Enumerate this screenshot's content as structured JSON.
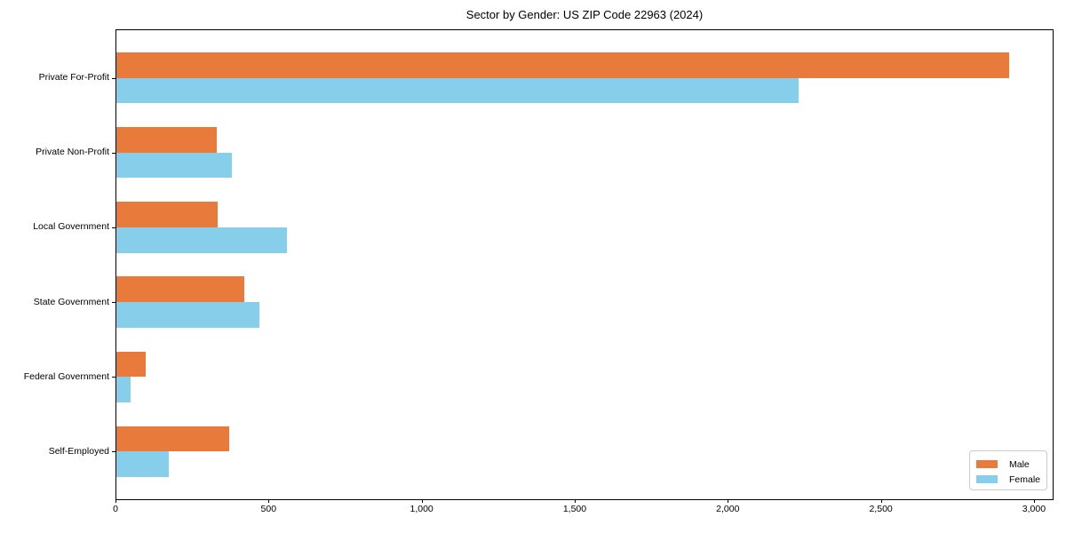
{
  "chart_data": {
    "type": "bar",
    "orientation": "horizontal",
    "title": "Sector by Gender: US ZIP Code 22963 (2024)",
    "categories": [
      "Private For-Profit",
      "Private Non-Profit",
      "Local Government",
      "State Government",
      "Federal Government",
      "Self-Employed"
    ],
    "series": [
      {
        "name": "Male",
        "color": "#E87A3C",
        "values": [
          2920,
          330,
          335,
          420,
          100,
          370
        ]
      },
      {
        "name": "Female",
        "color": "#87CEEB",
        "values": [
          2230,
          380,
          560,
          470,
          50,
          175
        ]
      }
    ],
    "xlabel": "",
    "ylabel": "",
    "xlim": [
      0,
      3064
    ],
    "x_ticks": [
      0,
      500,
      1000,
      1500,
      2000,
      2500,
      3000
    ],
    "x_tick_labels": [
      "0",
      "500",
      "1,000",
      "1,500",
      "2,000",
      "2,500",
      "3,000"
    ],
    "grid": false,
    "legend": {
      "position": "lower right"
    }
  }
}
